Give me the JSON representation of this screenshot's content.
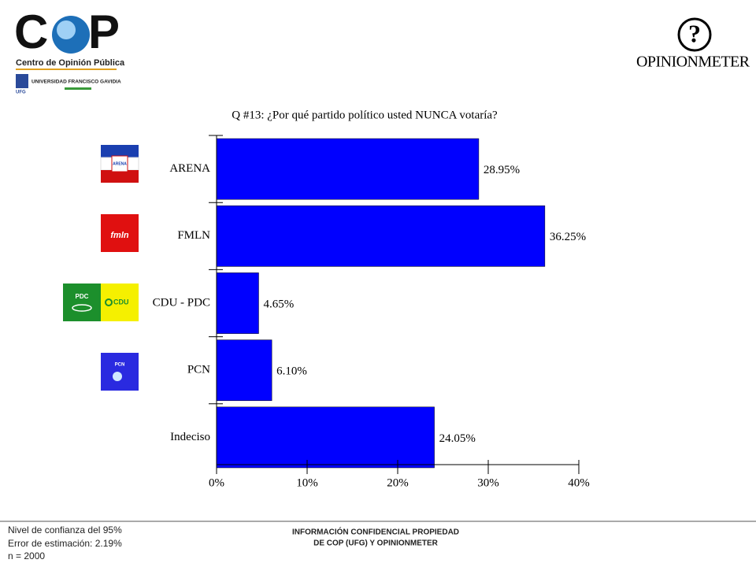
{
  "chart_data": {
    "type": "barh",
    "title": "Q #13: ¿Por qué partido político usted NUNCA votaría?",
    "categories": [
      "ARENA",
      "FMLN",
      "CDU - PDC",
      "PCN",
      "Indeciso"
    ],
    "values": [
      28.95,
      36.25,
      4.65,
      6.1,
      24.05
    ],
    "value_labels": [
      "28.95%",
      "36.25%",
      "4.65%",
      "6.10%",
      "24.05%"
    ],
    "color": "#0000ff",
    "xlim": [
      0,
      40
    ],
    "xticks": [
      {
        "value": 0,
        "label": "0%"
      },
      {
        "value": 10,
        "label": "10%"
      },
      {
        "value": 20,
        "label": "20%"
      },
      {
        "value": 30,
        "label": "30%"
      },
      {
        "value": 40,
        "label": "40%"
      }
    ]
  },
  "header": {
    "cop": "C",
    "cop2": "P",
    "cop_subtitle": "Centro de Opinión Pública",
    "university": "UNIVERSIDAD FRANCISCO GAVIDIA",
    "ufg": "UFG",
    "opinionmeter_icon": "?",
    "opinionmeter": "OPINIONMETER"
  },
  "logos": {
    "arena": "ARENA",
    "fmln": "fmln",
    "pdc": "PDC",
    "cdu": "CDU",
    "pcn": "PCN"
  },
  "footer": {
    "notes": [
      "Nivel de confianza del 95%",
      "Error de estimación: 2.19%",
      "n = 2000"
    ],
    "confidential": [
      "INFORMACIÓN CONFIDENCIAL PROPIEDAD",
      "DE COP (UFG) Y OPINIONMETER"
    ]
  }
}
